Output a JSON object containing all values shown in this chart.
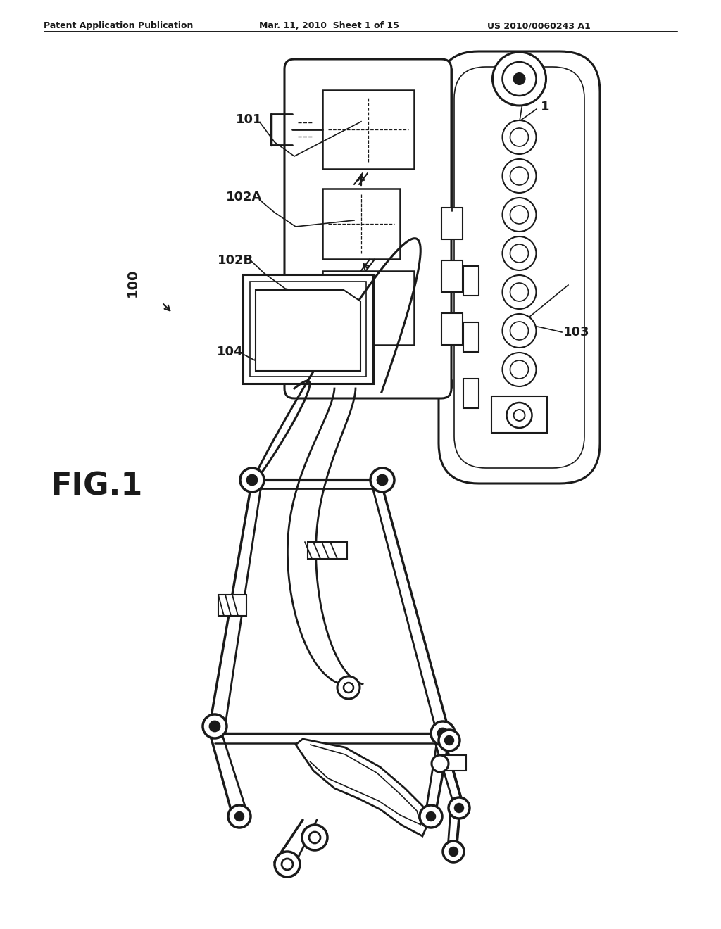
{
  "bg_color": "#ffffff",
  "lc": "#1a1a1a",
  "header_left": "Patent Application Publication",
  "header_mid": "Mar. 11, 2010  Sheet 1 of 15",
  "header_right": "US 2010/0060243 A1",
  "fig_label": "FIG.1",
  "lbl_100": "100",
  "lbl_1": "1",
  "lbl_101": "101",
  "lbl_102A": "102A",
  "lbl_102B": "102B",
  "lbl_103": "103",
  "lbl_104": "104"
}
